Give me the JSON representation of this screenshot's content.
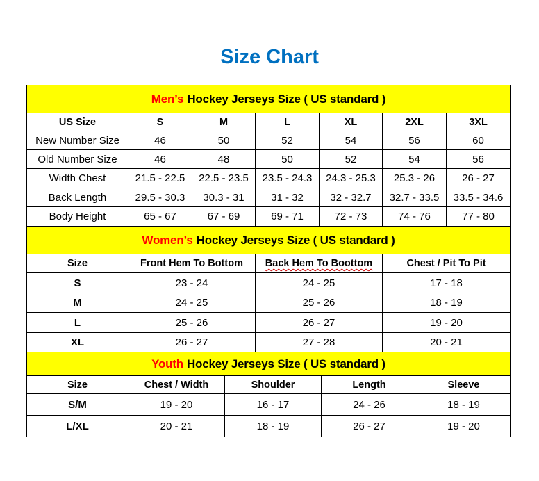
{
  "title": "Size Chart",
  "colors": {
    "title": "#0070c0",
    "band": "#ffff00",
    "highlight": "#ff0000"
  },
  "sections": [
    {
      "highlight": "Men’s",
      "heading": "Hockey Jerseys Size ( US standard )",
      "columns": [
        "US Size",
        "S",
        "M",
        "L",
        "XL",
        "2XL",
        "3XL"
      ],
      "rows": [
        [
          "New Number Size",
          "46",
          "50",
          "52",
          "54",
          "56",
          "60"
        ],
        [
          "Old Number Size",
          "46",
          "48",
          "50",
          "52",
          "54",
          "56"
        ],
        [
          "Width Chest",
          "21.5 - 22.5",
          "22.5 - 23.5",
          "23.5 - 24.3",
          "24.3 - 25.3",
          "25.3 - 26",
          "26 - 27"
        ],
        [
          "Back Length",
          "29.5 - 30.3",
          "30.3 - 31",
          "31 - 32",
          "32 - 32.7",
          "32.7 - 33.5",
          "33.5 - 34.6"
        ],
        [
          "Body Height",
          "65 - 67",
          "67 - 69",
          "69 - 71",
          "72 - 73",
          "74 - 76",
          "77 - 80"
        ]
      ]
    },
    {
      "highlight": "Women’s",
      "heading": "Hockey Jerseys Size ( US standard )",
      "columns": [
        "Size",
        "Front Hem To Bottom",
        "Back Hem To Boottom",
        "Chest / Pit To Pit"
      ],
      "rows": [
        [
          "S",
          "23 - 24",
          "24 - 25",
          "17 - 18"
        ],
        [
          "M",
          "24 - 25",
          "25 - 26",
          "18 - 19"
        ],
        [
          "L",
          "25 - 26",
          "26 - 27",
          "19 - 20"
        ],
        [
          "XL",
          "26 - 27",
          "27 - 28",
          "20 - 21"
        ]
      ]
    },
    {
      "highlight": "Youth",
      "heading": "Hockey Jerseys Size ( US standard )",
      "columns": [
        "Size",
        "Chest / Width",
        "Shoulder",
        "Length",
        "Sleeve"
      ],
      "rows": [
        [
          "S/M",
          "19 - 20",
          "16 - 17",
          "24 - 26",
          "18 - 19"
        ],
        [
          "L/XL",
          "20 - 21",
          "18 - 19",
          "26 - 27",
          "19 - 20"
        ]
      ]
    }
  ]
}
